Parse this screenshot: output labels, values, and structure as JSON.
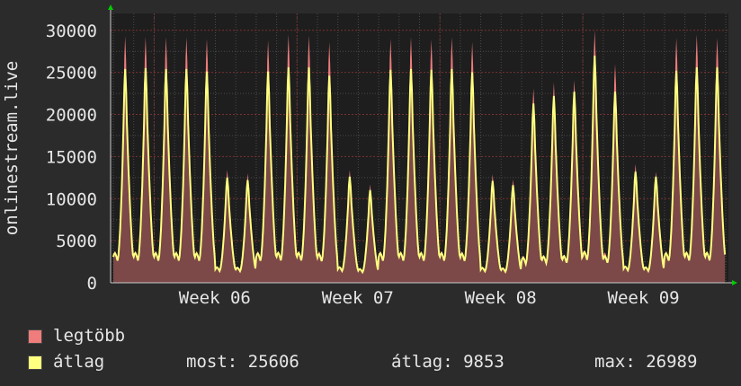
{
  "chart_data": {
    "type": "area",
    "ylabel": "onlinestream.live",
    "yticks": [
      "0",
      "5000",
      "10000",
      "15000",
      "20000",
      "25000",
      "30000"
    ],
    "ylim": [
      0,
      32000
    ],
    "xticks": [
      "Week 06",
      "Week 07",
      "Week 08",
      "Week 09"
    ],
    "grid": true,
    "series": [
      {
        "name": "legtöbb",
        "color": "#f07c7c",
        "daily_peaks": [
          29300,
          29200,
          29200,
          29200,
          29000,
          13400,
          13000,
          28800,
          29500,
          29400,
          28600,
          13400,
          11700,
          29000,
          29200,
          28900,
          29200,
          28600,
          12900,
          12300,
          23100,
          23800,
          24100,
          30000,
          26000,
          14100,
          13200,
          29100,
          29500,
          29100
        ]
      },
      {
        "name": "átlag",
        "color": "#ffff80",
        "daily_peaks": [
          25400,
          25500,
          25400,
          25400,
          25100,
          12500,
          12200,
          25100,
          25600,
          25600,
          24600,
          12600,
          11000,
          25300,
          25400,
          25300,
          25400,
          25000,
          12100,
          11600,
          21300,
          22200,
          22700,
          26989,
          22700,
          13200,
          12600,
          25200,
          25600,
          25606
        ]
      }
    ],
    "legend": {
      "max_label": "legtöbb",
      "avg_label": "átlag",
      "now_text": "most: 25606",
      "avg_text": "átlag: 9853",
      "max_text": "max: 26989"
    }
  },
  "colors": {
    "background": "#2b2b2b",
    "plot_background": "#1e1e1e",
    "grid_minor": "#4a4a4a",
    "grid_major": "#7a3030",
    "axis_arrow": "#00cc00",
    "text": "#e6e6e6"
  }
}
